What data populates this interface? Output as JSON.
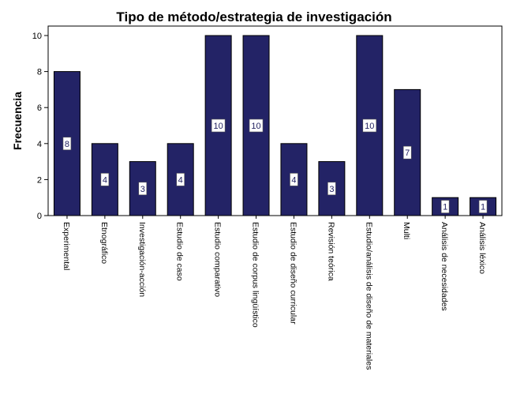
{
  "chart_data": {
    "type": "bar",
    "title": "Tipo de método/estrategia de investigación",
    "xlabel": "",
    "ylabel": "Frecuencia",
    "ylim": [
      0,
      10
    ],
    "yticks": [
      0,
      2,
      4,
      6,
      8,
      10
    ],
    "grid": false,
    "legend": "none",
    "categories": [
      "Experimental",
      "Etnográfico",
      "Investigación-acción",
      "Estudio de caso",
      "Estudio comparativo",
      "Estudio de corpus lingüístico",
      "Estudio de diseño curricular",
      "Revisión teórica",
      "Estudio/análisis de diseño de materiales",
      "Multi",
      "Análisis de necesidades",
      "Análisis léxico"
    ],
    "values": [
      8,
      4,
      3,
      4,
      10,
      10,
      4,
      3,
      10,
      7,
      1,
      1
    ],
    "bar_color": "#232366"
  }
}
